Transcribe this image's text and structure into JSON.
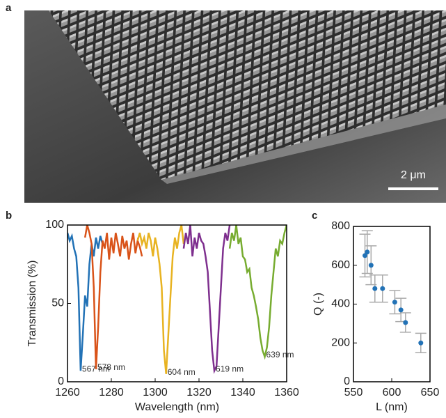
{
  "image_panel": {
    "panel_label": "a",
    "scale_bar": "2 μm"
  },
  "chart_data": [
    {
      "type": "line",
      "panel_label": "b",
      "x_label": "Wavelength (nm)",
      "y_label": "Transmission (%)",
      "xlim": [
        1260,
        1360
      ],
      "xticks": [
        1260,
        1280,
        1300,
        1320,
        1340,
        1360
      ],
      "ylim": [
        0,
        100
      ],
      "yticks": [
        0,
        50,
        100
      ],
      "series": [
        {
          "color": "#2272b6",
          "x": [
            1260,
            1261,
            1262,
            1263,
            1264,
            1265,
            1266,
            1267,
            1268,
            1269,
            1270,
            1271,
            1272,
            1273,
            1274,
            1275,
            1276
          ],
          "values": [
            95,
            90,
            93,
            85,
            80,
            60,
            7,
            30,
            55,
            48,
            75,
            88,
            80,
            92,
            85,
            93,
            88
          ]
        },
        {
          "color": "#d95319",
          "x": [
            1268,
            1269,
            1270,
            1271,
            1272,
            1273,
            1274,
            1275,
            1276,
            1277,
            1278,
            1279,
            1280,
            1281,
            1282,
            1283,
            1284,
            1285,
            1286,
            1287,
            1288,
            1289,
            1290,
            1291,
            1292,
            1293,
            1294
          ],
          "values": [
            92,
            100,
            95,
            88,
            60,
            8,
            35,
            70,
            90,
            85,
            95,
            78,
            92,
            82,
            95,
            88,
            80,
            93,
            85,
            90,
            78,
            88,
            95,
            82,
            90,
            86,
            80
          ]
        },
        {
          "color": "#e8b321",
          "x": [
            1292,
            1293,
            1294,
            1295,
            1296,
            1297,
            1298,
            1299,
            1300,
            1301,
            1302,
            1303,
            1304,
            1305,
            1306,
            1307,
            1308,
            1309,
            1310,
            1311,
            1312,
            1313
          ],
          "values": [
            90,
            95,
            88,
            92,
            85,
            95,
            90,
            80,
            92,
            85,
            75,
            60,
            20,
            5,
            30,
            55,
            80,
            92,
            85,
            95,
            100,
            88
          ]
        },
        {
          "color": "#7e2f8e",
          "x": [
            1313,
            1314,
            1315,
            1316,
            1317,
            1318,
            1319,
            1320,
            1321,
            1322,
            1323,
            1324,
            1325,
            1326,
            1327,
            1328,
            1329,
            1330,
            1331,
            1332,
            1333,
            1334
          ],
          "values": [
            85,
            95,
            88,
            100,
            80,
            92,
            85,
            95,
            90,
            88,
            80,
            70,
            45,
            20,
            7,
            10,
            35,
            60,
            85,
            95,
            90,
            100
          ]
        },
        {
          "color": "#77ac30",
          "x": [
            1334,
            1335,
            1336,
            1337,
            1338,
            1339,
            1340,
            1341,
            1342,
            1343,
            1344,
            1345,
            1346,
            1347,
            1348,
            1349,
            1350,
            1351,
            1352,
            1353,
            1354,
            1355,
            1356,
            1357,
            1358,
            1359,
            1360
          ],
          "values": [
            85,
            95,
            90,
            100,
            88,
            92,
            80,
            78,
            70,
            72,
            60,
            55,
            48,
            40,
            28,
            20,
            16,
            22,
            35,
            55,
            70,
            85,
            80,
            90,
            88,
            95,
            100
          ]
        }
      ],
      "annotations": [
        "567 nm",
        "578 nm",
        "604 nm",
        "619 nm",
        "639 nm"
      ]
    },
    {
      "type": "scatter",
      "panel_label": "c",
      "x_label": "L (nm)",
      "y_label": "Q (-)",
      "xlim": [
        550,
        650
      ],
      "xticks": [
        550,
        600,
        650
      ],
      "ylim": [
        0,
        800
      ],
      "yticks": [
        0,
        200,
        400,
        600,
        800
      ],
      "color": "#2272b6",
      "error_color": "#aaaaaa",
      "x": [
        565,
        568,
        573,
        578,
        588,
        604,
        612,
        618,
        638
      ],
      "values": [
        650,
        668,
        600,
        480,
        480,
        410,
        370,
        305,
        200
      ],
      "errors": [
        110,
        110,
        100,
        70,
        70,
        60,
        60,
        50,
        50
      ]
    }
  ]
}
